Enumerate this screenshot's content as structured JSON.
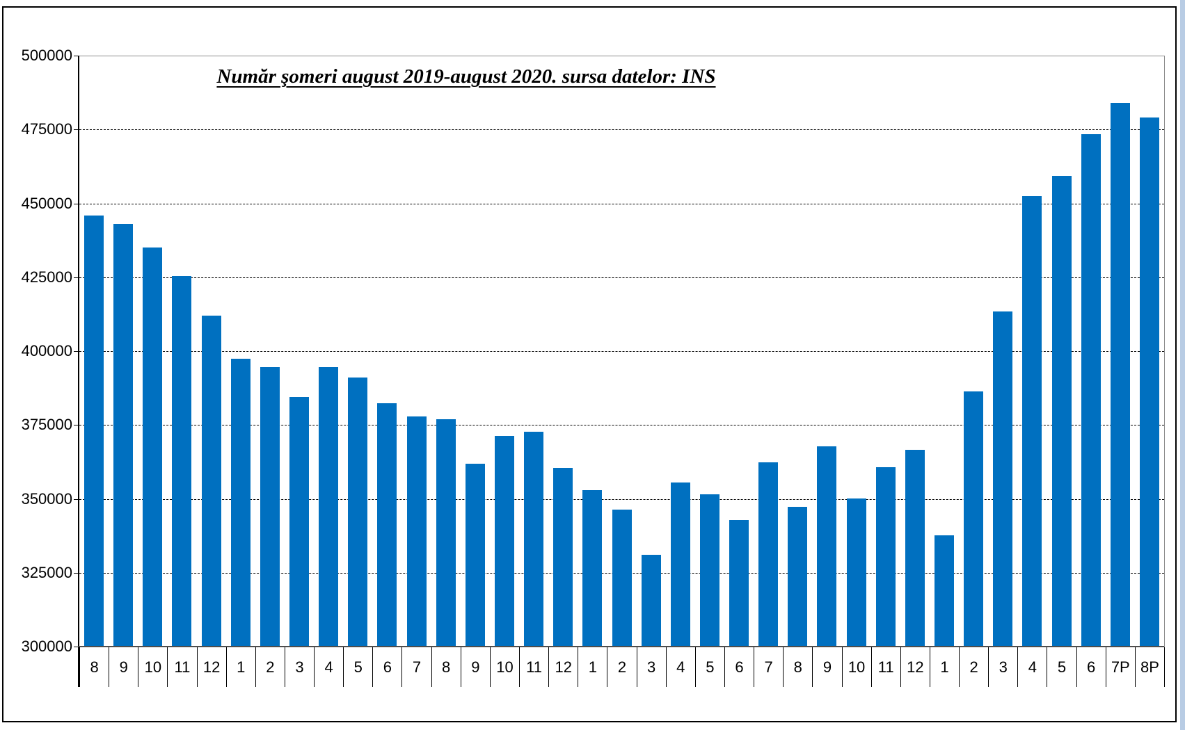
{
  "frame": {
    "border_color": "#000000",
    "background": "#ffffff",
    "right_strip_color": "#b8cce4"
  },
  "chart_data": {
    "type": "bar",
    "title": "Număr şomeri august 2019-august 2020. sursa datelor: INS",
    "categories": [
      "8",
      "9",
      "10",
      "11",
      "12",
      "1",
      "2",
      "3",
      "4",
      "5",
      "6",
      "7",
      "8",
      "9",
      "10",
      "11",
      "12",
      "1",
      "2",
      "3",
      "4",
      "5",
      "6",
      "7",
      "8",
      "9",
      "10",
      "11",
      "12",
      "1",
      "2",
      "3",
      "4",
      "5",
      "6",
      "7P",
      "8P"
    ],
    "values": [
      446000,
      443000,
      435000,
      425500,
      412000,
      397500,
      394500,
      384500,
      394500,
      391000,
      382300,
      378000,
      377000,
      362000,
      371200,
      372600,
      360400,
      353000,
      346400,
      331000,
      355500,
      351500,
      342800,
      362300,
      347300,
      367700,
      350200,
      360700,
      366600,
      337700,
      386300,
      413500,
      452400,
      459300,
      473400,
      484000,
      479000
    ],
    "xlabel": "",
    "ylabel": "",
    "ylim": [
      300000,
      500000
    ],
    "ytick_step": 25000,
    "yticks": [
      500000,
      475000,
      450000,
      425000,
      400000,
      375000,
      350000,
      325000,
      300000
    ],
    "bar_color": "#0070C0",
    "grid": "horizontal-dashed",
    "legend": "none"
  }
}
